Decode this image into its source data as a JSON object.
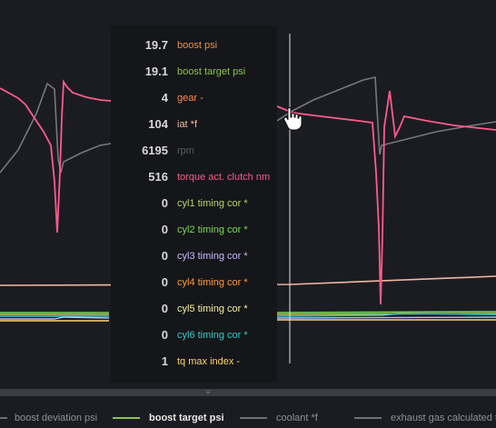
{
  "tooltip": {
    "rows": [
      {
        "value": "19.7",
        "label": "boost psi",
        "color": "#e8924a"
      },
      {
        "value": "19.1",
        "label": "boost target psi",
        "color": "#8bc34a"
      },
      {
        "value": "4",
        "label": "gear -",
        "color": "#ff8a50"
      },
      {
        "value": "104",
        "label": "iat *f",
        "color": "#f0b7a4"
      },
      {
        "value": "6195",
        "label": "rpm",
        "color": "#5b5d63"
      },
      {
        "value": "516",
        "label": "torque act. clutch nm",
        "color": "#ff5b8d"
      },
      {
        "value": "0",
        "label": "cyl1 timing cor *",
        "color": "#b7d36b"
      },
      {
        "value": "0",
        "label": "cyl2 timing cor *",
        "color": "#7ed957"
      },
      {
        "value": "0",
        "label": "cyl3 timing cor *",
        "color": "#c9b8ff"
      },
      {
        "value": "0",
        "label": "cyl4 timing cor *",
        "color": "#ff9a3c"
      },
      {
        "value": "0",
        "label": "cyl5 timing cor *",
        "color": "#f5f0a0"
      },
      {
        "value": "0",
        "label": "cyl6 timing cor *",
        "color": "#3cc9c9"
      },
      {
        "value": "1",
        "label": "tq max index -",
        "color": "#ffd56b"
      }
    ]
  },
  "scrollbar": {
    "grip_glyph": "≡"
  },
  "legend": {
    "items": [
      {
        "label": "boost deviation psi",
        "color": "#6f7177"
      },
      {
        "label": "boost target psi",
        "color": "#8bc34a",
        "active": true
      },
      {
        "label": "coolant *f",
        "color": "#6f7177"
      },
      {
        "label": "exhaust gas calculated temp",
        "color": "#6f7177"
      }
    ]
  },
  "icons": {
    "cursor": "hand-pointer-icon",
    "crosshair": "vertical-crosshair-line"
  }
}
